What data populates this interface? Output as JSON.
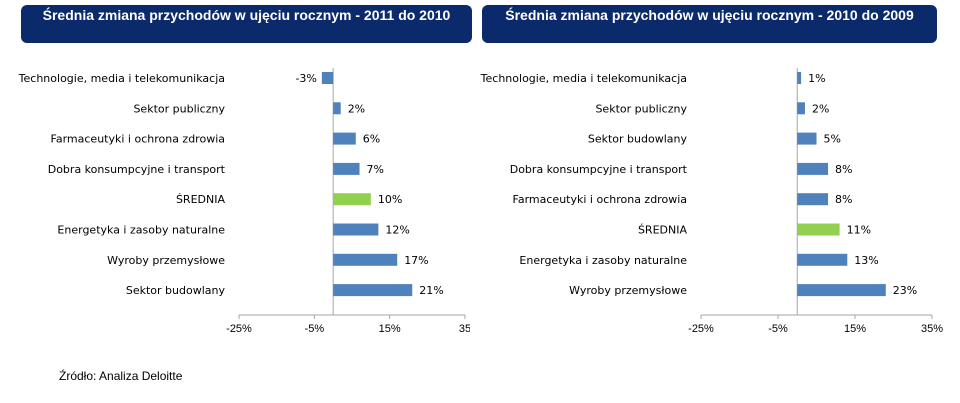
{
  "charts": {
    "left": {
      "title": "Średnia zmiana przychodów w ujęciu rocznym - 2011 do 2010"
    },
    "right": {
      "title": "Średnia zmiana przychodów w ujęciu rocznym - 2010 do 2009"
    }
  },
  "source": "Źródło: Analiza Deloitte",
  "colors": {
    "bar": "#4f81bd",
    "average_bar": "#92d050",
    "header_bg": "#0b2a6b"
  },
  "chart_data": [
    {
      "type": "bar",
      "orientation": "horizontal",
      "title": "Średnia zmiana przychodów w ujęciu rocznym - 2011 do 2010",
      "categories": [
        "Technologie, media i telekomunikacja",
        "Sektor publiczny",
        "Farmaceutyki i ochrona zdrowia",
        "Dobra konsumpcyjne i transport",
        "ŚREDNIA",
        "Energetyka i zasoby naturalne",
        "Wyroby przemysłowe",
        "Sektor budowlany"
      ],
      "values": [
        -3,
        2,
        6,
        7,
        10,
        12,
        17,
        21
      ],
      "value_labels": [
        "-3%",
        "2%",
        "6%",
        "7%",
        "10%",
        "12%",
        "17%",
        "21%"
      ],
      "highlight_category": "ŚREDNIA",
      "xlim": [
        -25,
        35
      ],
      "xticks": [
        -25,
        -5,
        15,
        35
      ],
      "xtick_labels": [
        "-25%",
        "-5%",
        "15%",
        "35"
      ],
      "grid": false,
      "legend": "none"
    },
    {
      "type": "bar",
      "orientation": "horizontal",
      "title": "Średnia zmiana przychodów w ujęciu rocznym - 2010 do 2009",
      "categories": [
        "Technologie, media i telekomunikacja",
        "Sektor publiczny",
        "Sektor budowlany",
        "Dobra konsumpcyjne i transport",
        "Farmaceutyki i ochrona zdrowia",
        "ŚREDNIA",
        "Energetyka i zasoby naturalne",
        "Wyroby przemysłowe"
      ],
      "values": [
        1,
        2,
        5,
        8,
        8,
        11,
        13,
        23
      ],
      "value_labels": [
        "1%",
        "2%",
        "5%",
        "8%",
        "8%",
        "11%",
        "13%",
        "23%"
      ],
      "highlight_category": "ŚREDNIA",
      "xlim": [
        -25,
        35
      ],
      "xticks": [
        -25,
        -5,
        15,
        35
      ],
      "xtick_labels": [
        "-25%",
        "-5%",
        "15%",
        "35%"
      ],
      "grid": false,
      "legend": "none"
    }
  ]
}
